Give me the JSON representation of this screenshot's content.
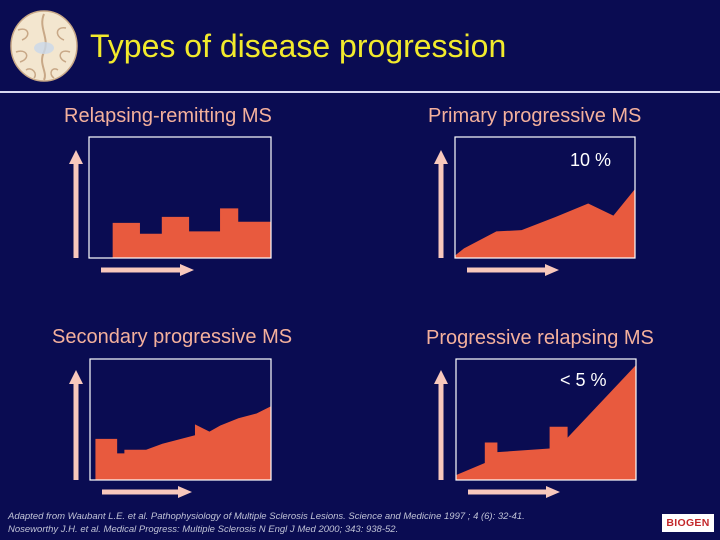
{
  "title": "Types of disease progression",
  "colors": {
    "background": "#0a0c52",
    "title": "#f2ea2c",
    "panel_title": "#f4b09c",
    "fill": "#e85a3e",
    "frame": "#ffffff",
    "arrow": "#f8c8bc"
  },
  "icons": {
    "header": "brain-icon",
    "axis": "arrow-icon"
  },
  "panels": [
    {
      "title": "Relapsing-remitting MS",
      "annotation": ""
    },
    {
      "title": "Primary progressive MS",
      "annotation": "10 %"
    },
    {
      "title": "Secondary progressive MS",
      "annotation": ""
    },
    {
      "title": "Progressive relapsing MS",
      "annotation": "< 5 %"
    }
  ],
  "chart_data": [
    {
      "type": "area",
      "title": "Relapsing-remitting MS",
      "xlabel": "",
      "ylabel": "",
      "xlim": [
        0,
        100
      ],
      "ylim": [
        0,
        100
      ],
      "x": [
        0,
        13,
        13,
        28,
        28,
        40,
        40,
        55,
        55,
        72,
        72,
        82,
        82,
        100
      ],
      "y": [
        0,
        0,
        29,
        29,
        20,
        20,
        34,
        34,
        22,
        22,
        41,
        41,
        30,
        30
      ]
    },
    {
      "type": "area",
      "title": "Primary progressive MS",
      "xlabel": "",
      "ylabel": "",
      "xlim": [
        0,
        100
      ],
      "ylim": [
        0,
        100
      ],
      "x": [
        0,
        5,
        23,
        37,
        56,
        74,
        88,
        100
      ],
      "y": [
        2,
        8,
        22,
        23,
        34,
        45,
        35,
        57
      ],
      "annotation": "10 %"
    },
    {
      "type": "area",
      "title": "Secondary progressive MS",
      "xlabel": "",
      "ylabel": "",
      "xlim": [
        0,
        100
      ],
      "ylim": [
        0,
        100
      ],
      "x": [
        0,
        3,
        3,
        15,
        15,
        19,
        19,
        31,
        40,
        58,
        58,
        66,
        72,
        82,
        92,
        100
      ],
      "y": [
        0,
        0,
        34,
        34,
        22,
        22,
        25,
        25,
        30,
        37,
        46,
        40,
        45,
        51,
        55,
        61
      ],
      "annotation": ""
    },
    {
      "type": "area",
      "title": "Progressive relapsing MS",
      "xlabel": "",
      "ylabel": "",
      "xlim": [
        0,
        100
      ],
      "ylim": [
        0,
        100
      ],
      "x": [
        0,
        16,
        16,
        23,
        23,
        52,
        52,
        62,
        62,
        100,
        100
      ],
      "y": [
        4,
        14,
        31,
        31,
        23,
        26,
        44,
        44,
        35,
        95,
        0
      ],
      "annotation": "< 5 %"
    }
  ],
  "references": [
    "Adapted from Waubant L.E. et al. Pathophysiology of Multiple Sclerosis Lesions. Science and Medicine 1997 ; 4 (6): 32-41.",
    "Noseworthy J.H. et al. Medical Progress: Multiple Sclerosis N Engl J Med 2000; 343: 938-52."
  ],
  "logo_text": "BIOGEN"
}
